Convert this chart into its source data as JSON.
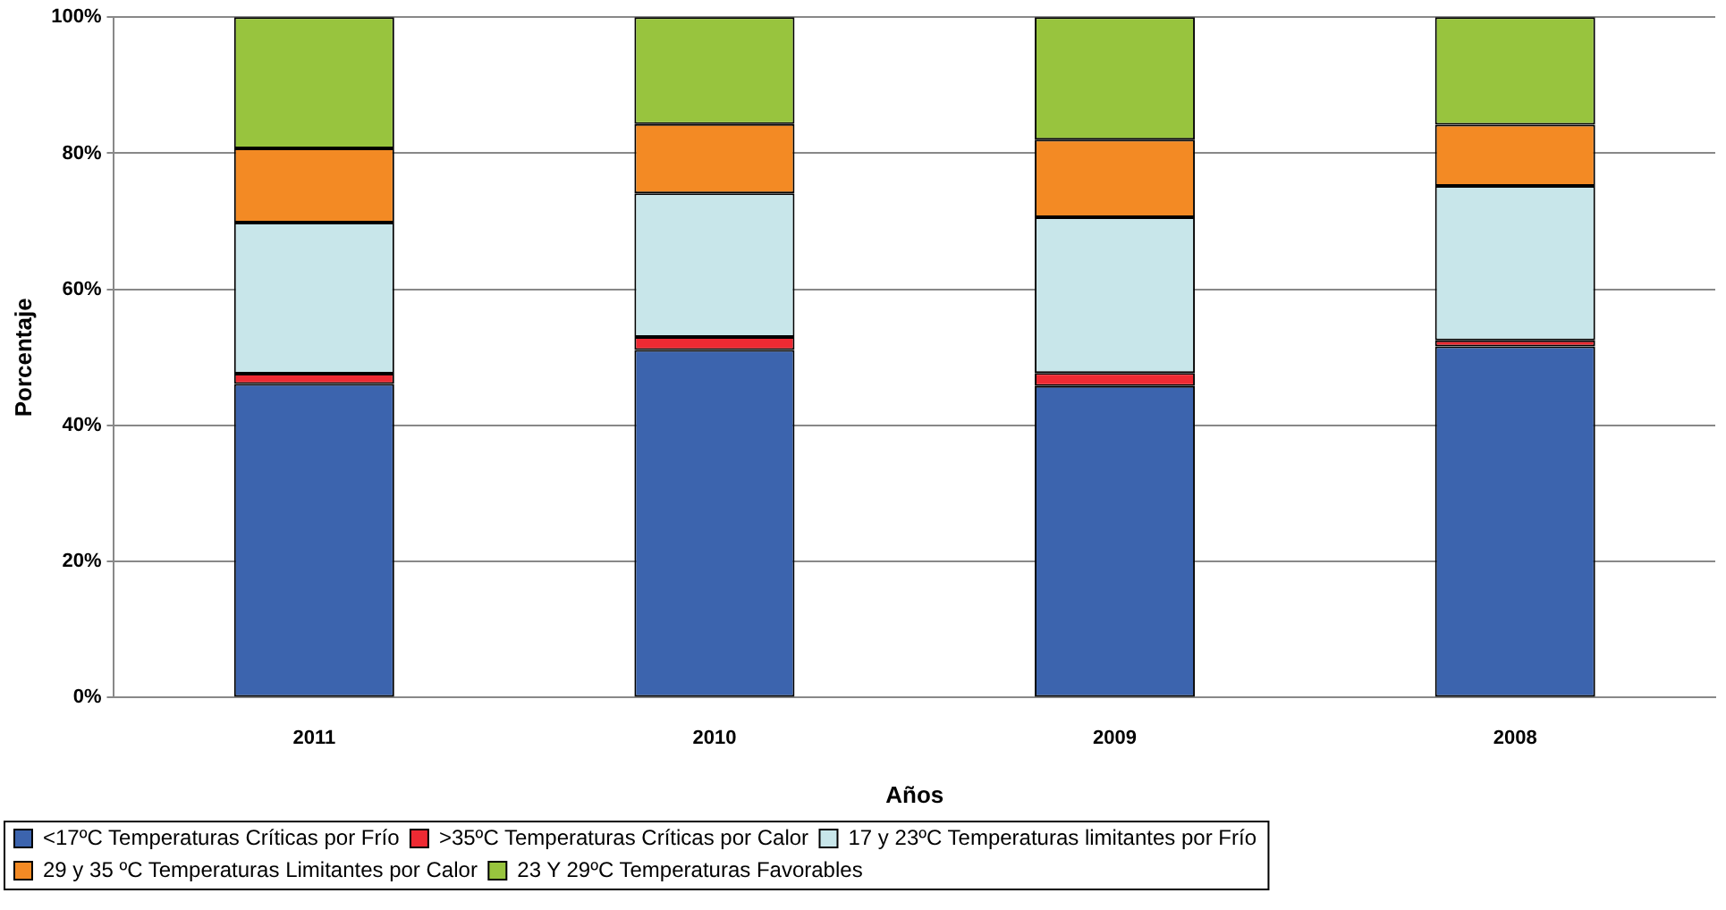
{
  "chart_data": {
    "type": "bar",
    "stacked": true,
    "xlabel": "Años",
    "ylabel": "Porcentaje",
    "categories": [
      "2011",
      "2010",
      "2009",
      "2008"
    ],
    "series": [
      {
        "name": "<17ºC Temperaturas Críticas por Frío",
        "color": "#3c64ae",
        "values": [
          46.1,
          51.1,
          45.8,
          51.6
        ]
      },
      {
        "name": ">35ºC Temperaturas Críticas por Calor",
        "color": "#ee2a33",
        "values": [
          1.5,
          1.9,
          1.9,
          0.9
        ]
      },
      {
        "name": "17 y 23ºC Temperaturas limitantes por Frío",
        "color": "#c8e6ea",
        "values": [
          22.2,
          21.1,
          22.9,
          22.7
        ]
      },
      {
        "name": "29 y 35 ºC Temperaturas Limitantes por Calor",
        "color": "#f38a24",
        "values": [
          10.9,
          10.2,
          11.4,
          9.0
        ]
      },
      {
        "name": "23 Y 29ºC Temperaturas Favorables",
        "color": "#98c43e",
        "values": [
          19.3,
          15.7,
          18.0,
          15.8
        ]
      }
    ],
    "ylim": [
      0,
      100
    ],
    "yticks": [
      {
        "value": 0,
        "label": "0%"
      },
      {
        "value": 20,
        "label": "20%"
      },
      {
        "value": 40,
        "label": "40%"
      },
      {
        "value": 60,
        "label": "60%"
      },
      {
        "value": 80,
        "label": "80%"
      },
      {
        "value": 100,
        "label": "100%"
      }
    ],
    "grid": "y",
    "legend": "bottom"
  }
}
